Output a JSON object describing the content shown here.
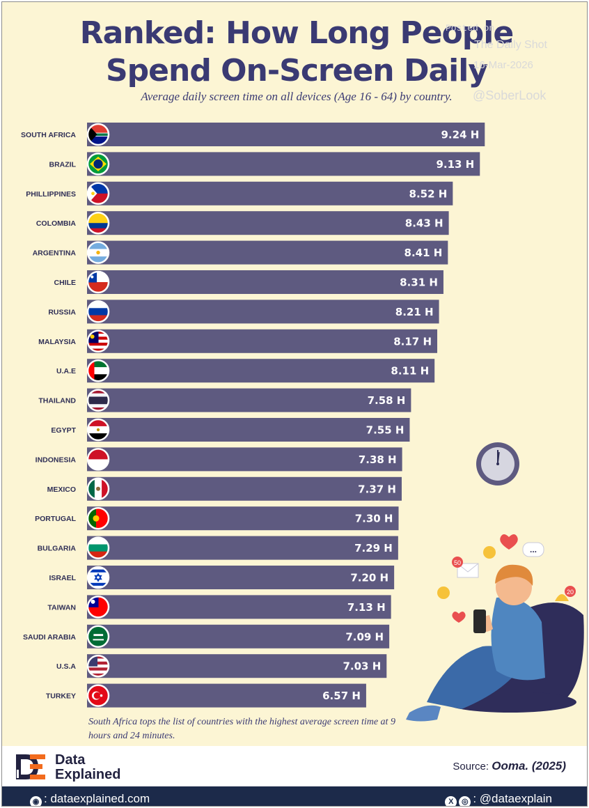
{
  "header": {
    "title_line1": "Ranked: How Long People",
    "title_line2": "Spend On-Screen Daily",
    "subtitle": "Average daily screen time on all devices (Age 16 - 64) by country."
  },
  "watermark": {
    "posted": "Posted on",
    "source_name": "The Daily Shot",
    "date": "16-Mar-2026",
    "handle": "@SoberLook"
  },
  "chart_data": {
    "type": "bar",
    "orientation": "horizontal",
    "categories": [
      "SOUTH AFRICA",
      "BRAZIL",
      "PHILLIPPINES",
      "COLOMBIA",
      "ARGENTINA",
      "CHILE",
      "RUSSIA",
      "MALAYSIA",
      "U.A.E",
      "THAILAND",
      "EGYPT",
      "INDONESIA",
      "MEXICO",
      "PORTUGAL",
      "BULGARIA",
      "ISRAEL",
      "TAIWAN",
      "SAUDI ARABIA",
      "U.S.A",
      "TURKEY"
    ],
    "values": [
      9.24,
      9.13,
      8.52,
      8.43,
      8.41,
      8.31,
      8.21,
      8.17,
      8.11,
      7.58,
      7.55,
      7.38,
      7.37,
      7.3,
      7.29,
      7.2,
      7.13,
      7.09,
      7.03,
      6.57
    ],
    "value_labels": [
      "9.24 H",
      "9.13 H",
      "8.52 H",
      "8.43 H",
      "8.41 H",
      "8.31 H",
      "8.21 H",
      "8.17 H",
      "8.11 H",
      "7.58 H",
      "7.55 H",
      "7.38 H",
      "7.37 H",
      "7.30 H",
      "7.29 H",
      "7.20 H",
      "7.13 H",
      "7.09 H",
      "7.03 H",
      "6.57 H"
    ],
    "bar_color": "#5e5a80",
    "grid": false,
    "legend": "none"
  },
  "flag_icons": [
    "flag-south-africa-icon",
    "flag-brazil-icon",
    "flag-philippines-icon",
    "flag-colombia-icon",
    "flag-argentina-icon",
    "flag-chile-icon",
    "flag-russia-icon",
    "flag-malaysia-icon",
    "flag-uae-icon",
    "flag-thailand-icon",
    "flag-egypt-icon",
    "flag-indonesia-icon",
    "flag-mexico-icon",
    "flag-portugal-icon",
    "flag-bulgaria-icon",
    "flag-israel-icon",
    "flag-taiwan-icon",
    "flag-saudi-arabia-icon",
    "flag-usa-icon",
    "flag-turkey-icon"
  ],
  "illustration": {
    "notification_count_left": "50",
    "notification_count_right": "20",
    "chat_bubble": "..."
  },
  "note": "South Africa tops the list of countries with the highest average screen time at 9 hours and 24 minutes.",
  "footer": {
    "brand_line1": "Data",
    "brand_line2": "Explained",
    "source_label": "Source:",
    "source_value": "Ooma. (2025)",
    "website": ": dataexplained.com",
    "social": ": @dataexplain"
  },
  "colors": {
    "background": "#fcf5d4",
    "title": "#3a3a73",
    "bar": "#5e5a80",
    "footer_bar": "#1c2a4a",
    "accent_orange": "#f26b1d"
  }
}
